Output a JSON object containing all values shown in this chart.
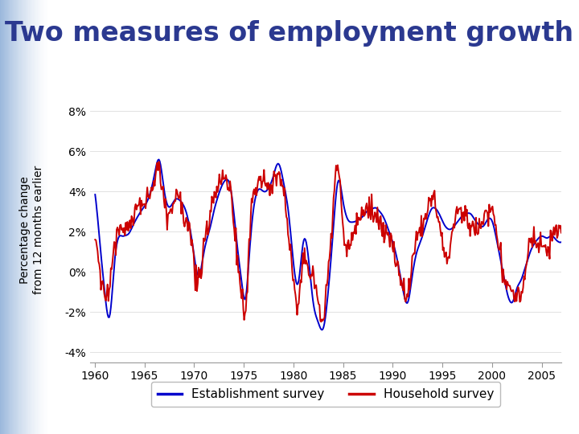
{
  "title": "Two measures of employment growth",
  "ylabel_line1": "Percentage change",
  "ylabel_line2": "from 12 months earlier",
  "xlim": [
    1959.5,
    2007.0
  ],
  "ylim": [
    -4.5,
    9.0
  ],
  "yticks": [
    -4,
    -2,
    0,
    2,
    4,
    6,
    8
  ],
  "ytick_labels": [
    "-4%",
    "-2%",
    "0%",
    "2%",
    "4%",
    "6%",
    "8%"
  ],
  "xticks": [
    1960,
    1965,
    1970,
    1975,
    1980,
    1985,
    1990,
    1995,
    2000,
    2005
  ],
  "title_color": "#2B3990",
  "title_fontsize": 24,
  "line1_color": "#0000CC",
  "line2_color": "#CC0000",
  "line1_label": "Establishment survey",
  "line2_label": "Household survey",
  "plot_bg": "#FFFFFF",
  "fig_bg": "#FFFFFF",
  "line_width": 1.4,
  "separator_color": "#7BA7D0",
  "legend_fontsize": 11,
  "axis_fontsize": 10,
  "ylabel_fontsize": 10
}
